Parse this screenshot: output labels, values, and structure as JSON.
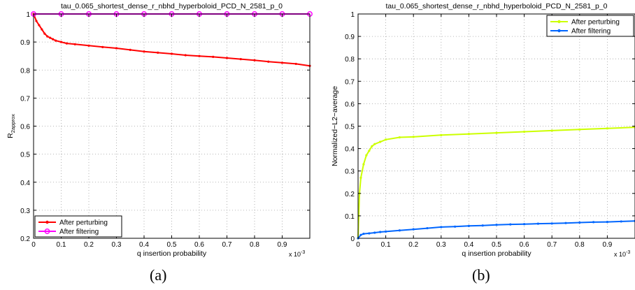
{
  "captions": [
    "(a)",
    "(b)"
  ],
  "chart_data": [
    {
      "type": "line",
      "title": "tau_0.065_shortest_dense_r_nbhd_hyperboloid_PCD_N_2581_p_0",
      "xlabel": "q insertion probability",
      "ylabel": "R",
      "ylabel_sub": "2approx",
      "xlim": [
        0,
        1.0
      ],
      "ylim": [
        0.2,
        1.0
      ],
      "x_multiplier": "x 10",
      "x_exponent": "-3",
      "xticks": [
        0,
        0.1,
        0.2,
        0.3,
        0.4,
        0.5,
        0.6,
        0.7,
        0.8,
        0.9
      ],
      "xtick_labels": [
        "0",
        "0.1",
        "0.2",
        "0.3",
        "0.4",
        "0.5",
        "0.6",
        "0.7",
        "0.8",
        "0.9"
      ],
      "yticks": [
        0.2,
        0.3,
        0.4,
        0.5,
        0.6,
        0.7,
        0.8,
        0.9,
        1.0
      ],
      "ytick_labels": [
        "0.2",
        "0.3",
        "0.4",
        "0.5",
        "0.6",
        "0.7",
        "0.8",
        "0.9",
        "1"
      ],
      "grid": true,
      "legend_position": "bottom-left",
      "series": [
        {
          "name": "After perturbing",
          "color": "#ff0000",
          "marker": "dot",
          "x": [
            0,
            0.01,
            0.02,
            0.03,
            0.04,
            0.05,
            0.06,
            0.07,
            0.08,
            0.1,
            0.12,
            0.15,
            0.2,
            0.25,
            0.3,
            0.35,
            0.4,
            0.45,
            0.5,
            0.55,
            0.6,
            0.65,
            0.7,
            0.75,
            0.8,
            0.85,
            0.9,
            0.95,
            1.0
          ],
          "y": [
            1.0,
            0.975,
            0.96,
            0.945,
            0.93,
            0.92,
            0.915,
            0.91,
            0.905,
            0.9,
            0.895,
            0.892,
            0.887,
            0.882,
            0.878,
            0.872,
            0.866,
            0.862,
            0.858,
            0.853,
            0.85,
            0.847,
            0.843,
            0.839,
            0.835,
            0.83,
            0.826,
            0.822,
            0.815
          ]
        },
        {
          "name": "After filtering",
          "color": "#ff00ff",
          "marker": "circle",
          "x": [
            0,
            0.1,
            0.2,
            0.3,
            0.4,
            0.5,
            0.6,
            0.7,
            0.8,
            0.9,
            1.0
          ],
          "y": [
            1.0,
            1.0,
            1.0,
            1.0,
            1.0,
            1.0,
            1.0,
            1.0,
            1.0,
            1.0,
            1.0
          ]
        }
      ]
    },
    {
      "type": "line",
      "title": "tau_0.065_shortest_dense_r_nbhd_hyperboloid_PCD_N_2581_p_0",
      "xlabel": "q insertion probability",
      "ylabel": "Normalized−L2−average",
      "xlim": [
        0,
        1.0
      ],
      "ylim": [
        0,
        1.0
      ],
      "x_multiplier": "x 10",
      "x_exponent": "-3",
      "xticks": [
        0,
        0.1,
        0.2,
        0.3,
        0.4,
        0.5,
        0.6,
        0.7,
        0.8,
        0.9
      ],
      "xtick_labels": [
        "0",
        "0.1",
        "0.2",
        "0.3",
        "0.4",
        "0.5",
        "0.6",
        "0.7",
        "0.8",
        "0.9"
      ],
      "yticks": [
        0,
        0.1,
        0.2,
        0.3,
        0.4,
        0.5,
        0.6,
        0.7,
        0.8,
        0.9,
        1.0
      ],
      "ytick_labels": [
        "0",
        "0.1",
        "0.2",
        "0.3",
        "0.4",
        "0.5",
        "0.6",
        "0.7",
        "0.8",
        "0.9",
        "1"
      ],
      "grid": true,
      "legend_position": "top-right",
      "series": [
        {
          "name": "After perturbing",
          "color": "#ccff00",
          "marker": "dot",
          "x": [
            0,
            0.005,
            0.01,
            0.02,
            0.03,
            0.04,
            0.05,
            0.06,
            0.08,
            0.1,
            0.15,
            0.2,
            0.3,
            0.4,
            0.5,
            0.6,
            0.7,
            0.8,
            0.9,
            1.0
          ],
          "y": [
            0.0,
            0.2,
            0.27,
            0.33,
            0.37,
            0.39,
            0.41,
            0.42,
            0.43,
            0.44,
            0.45,
            0.452,
            0.46,
            0.465,
            0.47,
            0.475,
            0.48,
            0.485,
            0.49,
            0.495
          ]
        },
        {
          "name": "After filtering",
          "color": "#0066ff",
          "marker": "dot",
          "x": [
            0,
            0.01,
            0.02,
            0.04,
            0.06,
            0.08,
            0.1,
            0.15,
            0.2,
            0.25,
            0.3,
            0.35,
            0.4,
            0.45,
            0.5,
            0.55,
            0.6,
            0.65,
            0.7,
            0.75,
            0.8,
            0.85,
            0.9,
            0.95,
            1.0
          ],
          "y": [
            0.0,
            0.015,
            0.02,
            0.022,
            0.025,
            0.028,
            0.03,
            0.035,
            0.04,
            0.045,
            0.05,
            0.052,
            0.055,
            0.057,
            0.06,
            0.062,
            0.063,
            0.065,
            0.066,
            0.068,
            0.07,
            0.072,
            0.073,
            0.075,
            0.077
          ]
        }
      ]
    }
  ]
}
